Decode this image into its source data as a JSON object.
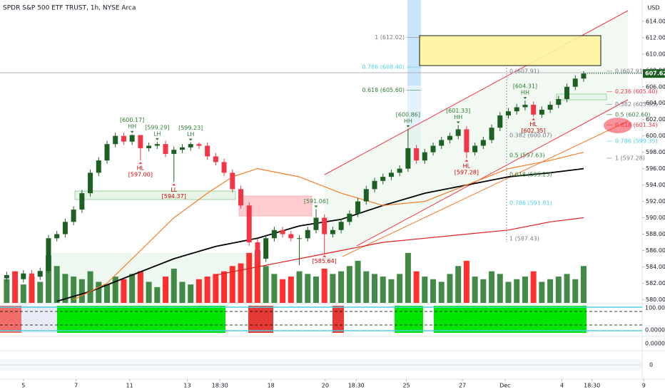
{
  "chart_data": {
    "type": "candlestick",
    "title": "SPDR S&P 500 ETF TRUST, 1h, NYSE Arca",
    "currency": "USD",
    "last_price": {
      "value": 607.62,
      "label": "607.62",
      "color": "#1b5e20"
    },
    "up_color": "#1e5f24",
    "down_color": "#f23645",
    "volume_up_color": "#2e7d32",
    "volume_down_color": "#ff1a1a",
    "xlim": [
      -0.8,
      76.0
    ],
    "ylim": [
      579.6,
      616.6
    ],
    "xticks": [
      {
        "value": 2.0,
        "label": "5"
      },
      {
        "value": 8.3,
        "label": "7"
      },
      {
        "value": 14.7,
        "label": "11"
      },
      {
        "value": 21.6,
        "label": "13"
      },
      {
        "value": 25.5,
        "label": "18:30"
      },
      {
        "value": 31.6,
        "label": "18"
      },
      {
        "value": 38.1,
        "label": "20"
      },
      {
        "value": 41.8,
        "label": "18:30"
      },
      {
        "value": 47.8,
        "label": "25"
      },
      {
        "value": 54.5,
        "label": "27"
      },
      {
        "value": 59.6,
        "label": "Dec"
      },
      {
        "value": 66.4,
        "label": "4"
      },
      {
        "value": 70.0,
        "label": "18:30"
      },
      {
        "value": 76.2,
        "label": "9"
      }
    ],
    "yticks": [
      {
        "value": 580,
        "label": "580.00"
      },
      {
        "value": 582,
        "label": "582.00"
      },
      {
        "value": 584,
        "label": "584.00"
      },
      {
        "value": 586,
        "label": "586.00"
      },
      {
        "value": 588,
        "label": "588.00"
      },
      {
        "value": 590,
        "label": "590.00"
      },
      {
        "value": 592,
        "label": "592.00"
      },
      {
        "value": 594,
        "label": "594.00"
      },
      {
        "value": 596,
        "label": "596.00"
      },
      {
        "value": 598,
        "label": "598.00"
      },
      {
        "value": 600,
        "label": "600.00"
      },
      {
        "value": 602,
        "label": "602.00"
      },
      {
        "value": 604,
        "label": "604.00"
      },
      {
        "value": 606,
        "label": "606.00"
      },
      {
        "value": 608,
        "label": "608.00"
      },
      {
        "value": 610,
        "label": "610.00"
      },
      {
        "value": 612,
        "label": "612.00"
      },
      {
        "value": 614,
        "label": "614.00"
      }
    ],
    "open": [
      582.6,
      583,
      582.5,
      583.2,
      582.8,
      583.5,
      587.5,
      588,
      589.5,
      591,
      593,
      595.5,
      597,
      599,
      600,
      599.3,
      600.1,
      598.5,
      598.8,
      599,
      597.8,
      598.3,
      598.6,
      599,
      598.8,
      597.5,
      596.8,
      595.5,
      593.5,
      591.5,
      587,
      585,
      587.5,
      588.5,
      588,
      587.5,
      587.5,
      588.5,
      590,
      588,
      588.5,
      589.5,
      590.5,
      592,
      593.5,
      594.5,
      595,
      595.5,
      596,
      598.5,
      597,
      598,
      598.8,
      599.5,
      600,
      600.8,
      598,
      598.8,
      599.5,
      601,
      602.5,
      603,
      603.5,
      603.8,
      602.6,
      603.2,
      603.8,
      604.5,
      606,
      607
    ],
    "high": [
      583.4,
      583.4,
      583.6,
      583.6,
      583.9,
      587.9,
      588.4,
      589.9,
      591.4,
      593.4,
      595.9,
      597.4,
      599.4,
      600.4,
      600.4,
      600.17,
      600.1,
      599.2,
      599.29,
      599.4,
      598.7,
      599.0,
      599.23,
      599.2,
      599.2,
      597.9,
      597.2,
      595.9,
      593.9,
      591.9,
      587.4,
      587.9,
      588.9,
      588.9,
      588.4,
      587.9,
      588.9,
      591.06,
      590.4,
      588.9,
      589.9,
      590.9,
      592.4,
      593.9,
      594.9,
      595.4,
      595.9,
      596.4,
      600.86,
      598.9,
      598.4,
      599.2,
      599.9,
      600.4,
      601.33,
      601.2,
      599.2,
      599.9,
      601.4,
      602.9,
      603.4,
      603.9,
      604.31,
      604.2,
      603.6,
      604.2,
      604.9,
      606.4,
      607.4,
      607.91
    ],
    "low": [
      582.2,
      582.1,
      582.1,
      582.4,
      582.4,
      583.1,
      587.1,
      587.6,
      589.1,
      590.6,
      592.6,
      595.1,
      596.6,
      598.6,
      598.9,
      598.9,
      597.0,
      598.1,
      598.4,
      597.4,
      594.37,
      597.9,
      598.2,
      598.4,
      597.1,
      596.4,
      595.1,
      593.1,
      591.1,
      586.6,
      583.9,
      584.6,
      587.1,
      587.6,
      587.1,
      584.2,
      587.1,
      588.1,
      585.64,
      587.6,
      588.1,
      589.1,
      590.1,
      591.6,
      593.1,
      594.1,
      594.6,
      595.1,
      595.6,
      596.6,
      596.6,
      597.6,
      598.4,
      599.1,
      599.6,
      597.28,
      597.6,
      598.4,
      599.1,
      600.6,
      602.1,
      602.6,
      603.1,
      602.35,
      602.2,
      602.8,
      603.4,
      604.1,
      605.6,
      606.6
    ],
    "close": [
      583,
      582.5,
      583.2,
      582.8,
      583.5,
      587.5,
      588,
      589.5,
      591,
      593,
      595.5,
      597,
      599,
      600,
      599.3,
      600.1,
      598.5,
      598.8,
      599,
      597.8,
      598.3,
      598.6,
      599,
      598.8,
      597.5,
      596.8,
      595.5,
      593.5,
      591.5,
      587,
      585,
      587.5,
      588.5,
      588,
      587.5,
      587.5,
      588.5,
      590,
      588,
      588.5,
      589.5,
      590.5,
      592,
      593.5,
      594.5,
      595,
      595.5,
      596,
      598.5,
      597,
      598,
      598.8,
      599.5,
      600,
      600.8,
      598,
      598.8,
      599.5,
      601,
      602.5,
      603,
      603.5,
      603.8,
      602.6,
      603.2,
      603.8,
      604.5,
      606,
      607,
      607.62
    ],
    "volume": [
      45,
      60,
      35,
      50,
      40,
      90,
      70,
      55,
      50,
      45,
      60,
      40,
      35,
      50,
      45,
      55,
      60,
      40,
      30,
      50,
      65,
      40,
      35,
      45,
      50,
      55,
      60,
      70,
      75,
      95,
      100,
      70,
      55,
      45,
      50,
      60,
      55,
      50,
      65,
      55,
      60,
      70,
      80,
      60,
      55,
      50,
      45,
      55,
      95,
      60,
      50,
      45,
      40,
      55,
      70,
      80,
      50,
      45,
      60,
      55,
      40,
      45,
      50,
      60,
      40,
      45,
      50,
      55,
      45,
      70
    ],
    "volume_ylim": [
      0,
      115
    ],
    "series": [
      {
        "color": "#000000",
        "x": [
          6,
          10,
          15,
          20,
          25,
          30,
          35,
          40,
          45,
          50,
          55,
          60,
          65,
          69
        ],
        "values": [
          579.8,
          581,
          583,
          585,
          586.5,
          587.5,
          589,
          589.8,
          591.5,
          593,
          594,
          595,
          595.5,
          596
        ]
      },
      {
        "color": "#f57c26",
        "x": [
          8,
          12,
          16,
          20,
          24,
          27,
          30,
          35,
          40,
          45,
          50,
          55,
          60,
          65,
          69
        ],
        "values": [
          580,
          582,
          586,
          590,
          593,
          595,
          596,
          595,
          593,
          591.5,
          592,
          594,
          596,
          597,
          598
        ]
      },
      {
        "color": "#e01e1e",
        "x": [
          25,
          30,
          35,
          40,
          45,
          50,
          55,
          60,
          65,
          69
        ],
        "values": [
          583,
          584,
          585,
          586,
          587,
          587.5,
          588,
          588.5,
          589.5,
          590
        ]
      }
    ],
    "pivot_highs": [
      {
        "labels": [
          "[600.17]",
          "HH"
        ],
        "at": 15
      },
      {
        "labels": [
          "[599.29]",
          "LH"
        ],
        "at": 18
      },
      {
        "labels": [
          "[599.23]",
          "LH"
        ],
        "at": 22
      },
      {
        "labels": [
          "[591.06]"
        ],
        "at": 37
      },
      {
        "labels": [
          "[600.86]",
          "HH"
        ],
        "at": 48
      },
      {
        "labels": [
          "[601.33]",
          "HH"
        ],
        "at": 54
      },
      {
        "labels": [
          "[604.31]",
          "HH"
        ],
        "at": 62
      }
    ],
    "pivot_lows": [
      {
        "labels": [
          "HL",
          "[597.00]"
        ],
        "at": 16
      },
      {
        "labels": [
          "LL",
          "[594.37]"
        ],
        "at": 20
      },
      {
        "labels": [
          "[585.64]"
        ],
        "at": 38
      },
      {
        "labels": [
          "HL",
          "[597.28]"
        ],
        "at": 55
      },
      {
        "labels": [
          "HL",
          "[602.35]"
        ],
        "at": 63
      }
    ],
    "fib_outer": [
      {
        "label": "1 (612.02)",
        "value": 612.02,
        "color": "#787b86"
      },
      {
        "label": "0.786 (608.40)",
        "value": 608.4,
        "color": "#4dd0e1"
      },
      {
        "label": "0.618 (605.60)",
        "value": 605.6,
        "color": "#2e7d32"
      }
    ],
    "fib_mid": [
      {
        "label": "0 (607.91)",
        "value": 607.91,
        "color": "#787b86"
      },
      {
        "label": "0.382 (600.07)",
        "value": 600.07,
        "color": "#787b86"
      },
      {
        "label": "0.5 (597.63)",
        "value": 597.63,
        "color": "#2e7d32"
      },
      {
        "label": "0.618 (595.25)",
        "value": 595.25,
        "color": "#2e7d32"
      },
      {
        "label": "0.786 (591.81)",
        "value": 591.81,
        "color": "#4dd0e1"
      },
      {
        "label": "1 (587.43)",
        "value": 587.43,
        "color": "#787b86"
      }
    ],
    "fib_right": [
      {
        "label": "0 (607.91)",
        "value": 607.91,
        "color": "#787b86"
      },
      {
        "label": "0.236 (605.40)",
        "value": 605.4,
        "color": "#f23645"
      },
      {
        "label": "0.382 (603.85)",
        "value": 603.85,
        "color": "#787b86"
      },
      {
        "label": "0.5 (602.60)",
        "value": 602.6,
        "color": "#2e7d32"
      },
      {
        "label": "0.618 (601.34)",
        "value": 601.34,
        "color": "#f23645"
      },
      {
        "label": "0.786 (599.35)",
        "value": 599.35,
        "color": "#4dd0e1"
      },
      {
        "label": "1 (597.28)",
        "value": 597.28,
        "color": "#787b86"
      }
    ],
    "pane_labels": [
      "100.00",
      "0.0000",
      "0.0000",
      "0"
    ]
  }
}
